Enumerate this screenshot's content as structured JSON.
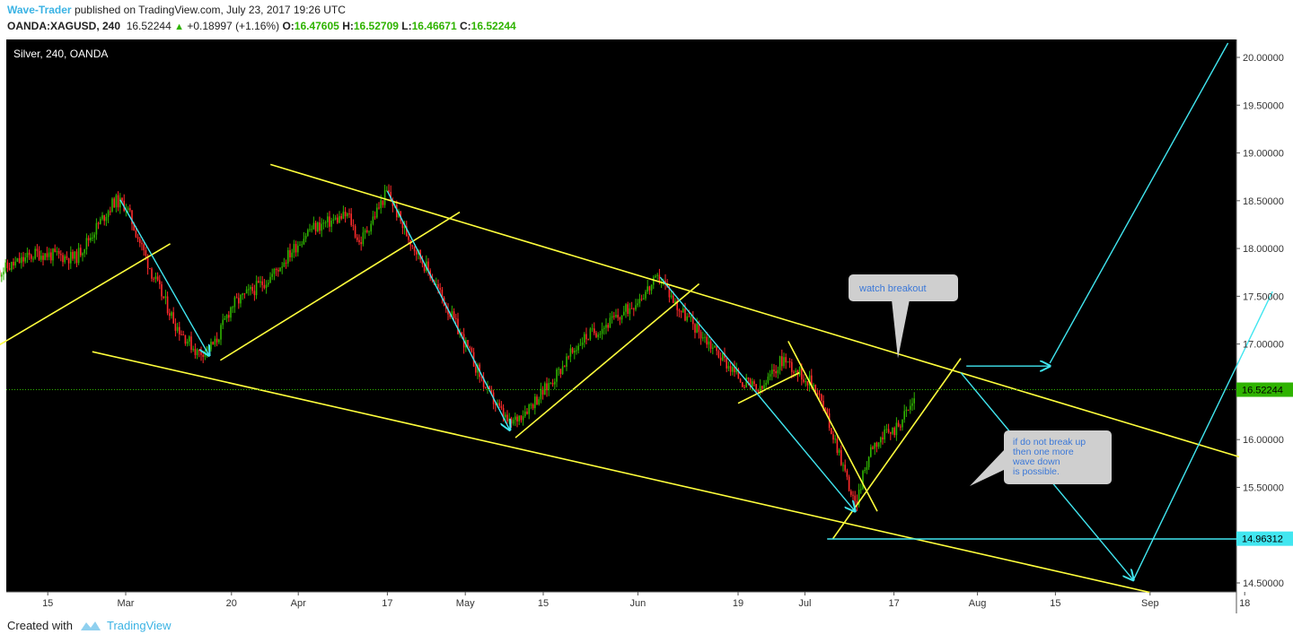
{
  "header": {
    "author": "Wave-Trader",
    "published": "published on TradingView.com, July 23, 2017 19:26 UTC",
    "symbol": "OANDA:XAGUSD, 240",
    "last": "16.52244",
    "change": "+0.18997 (+1.16%)",
    "o_label": "O:",
    "o_value": "16.47605",
    "h_label": "H:",
    "h_value": "16.52709",
    "l_label": "L:",
    "l_value": "16.46671",
    "c_label": "C:",
    "c_value": "16.52244"
  },
  "footer": {
    "created_with": "Created with",
    "brand": "TradingView"
  },
  "colors": {
    "background": "#000000",
    "up": "#2fb300",
    "down": "#ff2b2b",
    "yellow": "#ffff3c",
    "cyan": "#41e6f0",
    "axis_text": "#333333",
    "callout": "#cfcfcf",
    "callout_text": "#3b78d8"
  },
  "chart_data": {
    "type": "candlestick",
    "title": "Silver, 240, OANDA",
    "ylim": [
      14.4,
      20.2
    ],
    "y_ticks": [
      "20.00000",
      "19.50000",
      "19.00000",
      "18.50000",
      "18.00000",
      "17.50000",
      "17.00000",
      "16.50000",
      "16.00000",
      "15.50000",
      "15.00000",
      "14.50000"
    ],
    "x_ticks": [
      "15",
      "Mar",
      "20",
      "Apr",
      "17",
      "May",
      "15",
      "Jun",
      "19",
      "Jul",
      "17",
      "Aug",
      "15",
      "Sep",
      "18"
    ],
    "price_labels": {
      "last": "16.52244",
      "level": "14.96312"
    },
    "price_path": [
      [
        "2017-02-06",
        17.75
      ],
      [
        "2017-02-13",
        17.95
      ],
      [
        "2017-02-20",
        17.9
      ],
      [
        "2017-02-27",
        18.5
      ],
      [
        "2017-03-01",
        18.45
      ],
      [
        "2017-03-06",
        17.7
      ],
      [
        "2017-03-10",
        17.2
      ],
      [
        "2017-03-14",
        16.9
      ],
      [
        "2017-03-17",
        17.0
      ],
      [
        "2017-03-20",
        17.4
      ],
      [
        "2017-03-27",
        17.7
      ],
      [
        "2017-04-03",
        18.2
      ],
      [
        "2017-04-10",
        18.35
      ],
      [
        "2017-04-12",
        18.05
      ],
      [
        "2017-04-17",
        18.6
      ],
      [
        "2017-04-20",
        18.2
      ],
      [
        "2017-04-25",
        17.7
      ],
      [
        "2017-05-01",
        17.0
      ],
      [
        "2017-05-05",
        16.5
      ],
      [
        "2017-05-09",
        16.15
      ],
      [
        "2017-05-15",
        16.5
      ],
      [
        "2017-05-22",
        17.05
      ],
      [
        "2017-05-29",
        17.3
      ],
      [
        "2017-06-05",
        17.7
      ],
      [
        "2017-06-08",
        17.4
      ],
      [
        "2017-06-14",
        17.0
      ],
      [
        "2017-06-20",
        16.6
      ],
      [
        "2017-06-23",
        16.5
      ],
      [
        "2017-06-27",
        16.85
      ],
      [
        "2017-07-03",
        16.55
      ],
      [
        "2017-07-07",
        15.9
      ],
      [
        "2017-07-10",
        15.3
      ],
      [
        "2017-07-13",
        15.95
      ],
      [
        "2017-07-17",
        16.1
      ],
      [
        "2017-07-20",
        16.35
      ],
      [
        "2017-07-21",
        16.52
      ]
    ],
    "lines": [
      {
        "color": "yellow",
        "from": [
          "2017-02-06",
          16.98
        ],
        "to": [
          "2017-03-09",
          18.05
        ]
      },
      {
        "color": "yellow",
        "from": [
          "2017-03-18",
          16.83
        ],
        "to": [
          "2017-04-30",
          18.38
        ]
      },
      {
        "color": "yellow",
        "from": [
          "2017-05-10",
          16.02
        ],
        "to": [
          "2017-06-12",
          17.63
        ]
      },
      {
        "color": "yellow",
        "from": [
          "2017-06-19",
          16.38
        ],
        "to": [
          "2017-06-30",
          16.7
        ]
      },
      {
        "color": "yellow",
        "from": [
          "2017-06-28",
          17.03
        ],
        "to": [
          "2017-07-14",
          15.25
        ]
      },
      {
        "color": "yellow",
        "from": [
          "2017-07-06",
          14.96
        ],
        "to": [
          "2017-07-29",
          16.85
        ]
      },
      {
        "color": "yellow",
        "from": [
          "2017-03-27",
          18.88
        ],
        "to": [
          "2017-09-17",
          15.82
        ]
      },
      {
        "color": "yellow",
        "from": [
          "2017-02-23",
          16.92
        ],
        "to": [
          "2017-09-01",
          14.4
        ]
      },
      {
        "color": "cyan",
        "from": [
          "2017-02-28",
          18.51
        ],
        "to": [
          "2017-03-16",
          16.88
        ],
        "arrow": true
      },
      {
        "color": "cyan",
        "from": [
          "2017-04-17",
          18.6
        ],
        "to": [
          "2017-05-09",
          16.1
        ],
        "arrow": true
      },
      {
        "color": "cyan",
        "from": [
          "2017-06-05",
          17.7
        ],
        "to": [
          "2017-07-10",
          15.25
        ],
        "arrow": true
      },
      {
        "color": "cyan",
        "from": [
          "2017-07-30",
          16.77
        ],
        "to": [
          "2017-08-14",
          16.77
        ],
        "arrow": true
      },
      {
        "color": "cyan",
        "from": [
          "2017-07-29",
          16.7
        ],
        "to": [
          "2017-08-29",
          14.53
        ],
        "arrow": true
      },
      {
        "color": "cyan",
        "from": [
          "2017-08-29",
          14.53
        ],
        "to": [
          "2017-09-23",
          17.55
        ]
      },
      {
        "color": "cyan",
        "from": [
          "2017-08-14",
          16.8
        ],
        "to": [
          "2017-09-15",
          20.15
        ]
      },
      {
        "color": "cyan",
        "from": [
          "2017-07-05",
          14.96
        ],
        "to": [
          "2017-09-24",
          14.96
        ]
      }
    ],
    "annotations": [
      {
        "text": "watch breakout",
        "at": [
          "2017-07-28",
          16.95
        ]
      },
      {
        "text": "if do not break up then one more wave down is possible.",
        "at": [
          "2017-08-12",
          15.5
        ]
      }
    ]
  }
}
